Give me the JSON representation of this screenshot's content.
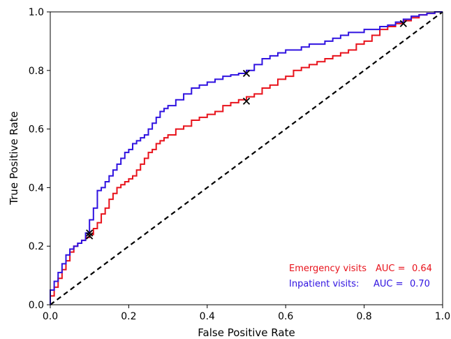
{
  "chart_data": {
    "type": "line",
    "title": "",
    "xlabel": "False Positive Rate",
    "ylabel": "True Positive Rate",
    "xlim": [
      0.0,
      1.0
    ],
    "ylim": [
      0.0,
      1.0
    ],
    "grid": false,
    "legend_position": "bottom-right",
    "x_ticks": [
      0.0,
      0.2,
      0.4,
      0.6,
      0.8,
      1.0
    ],
    "x_tick_labels": [
      "0.0",
      "0.2",
      "0.4",
      "0.6",
      "0.8",
      "1.0"
    ],
    "y_ticks": [
      0.0,
      0.2,
      0.4,
      0.6,
      0.8,
      1.0
    ],
    "y_tick_labels": [
      "0.0",
      "0.2",
      "0.4",
      "0.6",
      "0.8",
      "1.0"
    ],
    "series": [
      {
        "name": "Emergency visits",
        "auc_label": "AUC =",
        "auc": "0.64",
        "color": "#e8121b",
        "x": [
          0.0,
          0.01,
          0.02,
          0.03,
          0.04,
          0.05,
          0.06,
          0.07,
          0.08,
          0.09,
          0.1,
          0.11,
          0.12,
          0.13,
          0.14,
          0.15,
          0.16,
          0.17,
          0.18,
          0.19,
          0.2,
          0.21,
          0.22,
          0.23,
          0.24,
          0.25,
          0.26,
          0.27,
          0.28,
          0.29,
          0.3,
          0.32,
          0.34,
          0.36,
          0.38,
          0.4,
          0.42,
          0.44,
          0.46,
          0.48,
          0.5,
          0.52,
          0.54,
          0.56,
          0.58,
          0.6,
          0.62,
          0.64,
          0.66,
          0.68,
          0.7,
          0.72,
          0.74,
          0.76,
          0.78,
          0.8,
          0.82,
          0.84,
          0.86,
          0.88,
          0.9,
          0.92,
          0.94,
          0.96,
          0.98,
          1.0
        ],
        "y": [
          0.0,
          0.03,
          0.06,
          0.09,
          0.12,
          0.15,
          0.18,
          0.2,
          0.21,
          0.22,
          0.23,
          0.24,
          0.26,
          0.28,
          0.31,
          0.33,
          0.36,
          0.38,
          0.4,
          0.41,
          0.42,
          0.43,
          0.44,
          0.46,
          0.48,
          0.5,
          0.52,
          0.53,
          0.55,
          0.56,
          0.57,
          0.58,
          0.6,
          0.61,
          0.63,
          0.64,
          0.65,
          0.66,
          0.68,
          0.69,
          0.7,
          0.71,
          0.72,
          0.74,
          0.75,
          0.77,
          0.78,
          0.8,
          0.81,
          0.82,
          0.83,
          0.84,
          0.85,
          0.86,
          0.87,
          0.89,
          0.9,
          0.92,
          0.94,
          0.95,
          0.96,
          0.97,
          0.98,
          0.99,
          0.995,
          1.0
        ],
        "markers": [
          {
            "x": 0.1,
            "y": 0.235
          },
          {
            "x": 0.5,
            "y": 0.695
          },
          {
            "x": 0.9,
            "y": 0.96
          }
        ]
      },
      {
        "name": "Inpatient visits:",
        "auc_label": "AUC =",
        "auc": "0.70",
        "color": "#2f12e0",
        "x": [
          0.0,
          0.01,
          0.02,
          0.03,
          0.04,
          0.05,
          0.06,
          0.07,
          0.08,
          0.09,
          0.1,
          0.11,
          0.12,
          0.13,
          0.14,
          0.15,
          0.16,
          0.17,
          0.18,
          0.19,
          0.2,
          0.21,
          0.22,
          0.23,
          0.24,
          0.25,
          0.26,
          0.27,
          0.28,
          0.29,
          0.3,
          0.32,
          0.34,
          0.36,
          0.38,
          0.4,
          0.42,
          0.44,
          0.46,
          0.48,
          0.5,
          0.52,
          0.54,
          0.56,
          0.58,
          0.6,
          0.62,
          0.64,
          0.66,
          0.68,
          0.7,
          0.72,
          0.74,
          0.76,
          0.78,
          0.8,
          0.82,
          0.84,
          0.86,
          0.88,
          0.9,
          0.92,
          0.94,
          0.96,
          0.98,
          1.0
        ],
        "y": [
          0.0,
          0.05,
          0.08,
          0.11,
          0.14,
          0.17,
          0.19,
          0.2,
          0.21,
          0.22,
          0.245,
          0.29,
          0.33,
          0.39,
          0.4,
          0.42,
          0.44,
          0.46,
          0.48,
          0.5,
          0.52,
          0.53,
          0.55,
          0.56,
          0.57,
          0.58,
          0.6,
          0.62,
          0.64,
          0.66,
          0.67,
          0.68,
          0.7,
          0.72,
          0.74,
          0.75,
          0.76,
          0.77,
          0.78,
          0.785,
          0.79,
          0.8,
          0.82,
          0.84,
          0.85,
          0.86,
          0.87,
          0.87,
          0.88,
          0.89,
          0.89,
          0.9,
          0.91,
          0.92,
          0.93,
          0.93,
          0.94,
          0.94,
          0.95,
          0.955,
          0.965,
          0.975,
          0.985,
          0.99,
          0.995,
          1.0
        ],
        "markers": [
          {
            "x": 0.1,
            "y": 0.245
          },
          {
            "x": 0.5,
            "y": 0.79
          }
        ]
      }
    ],
    "reference_line": {
      "x": [
        0.0,
        1.0
      ],
      "y": [
        0.0,
        1.0
      ],
      "color": "#000000",
      "style": "dashed"
    }
  }
}
